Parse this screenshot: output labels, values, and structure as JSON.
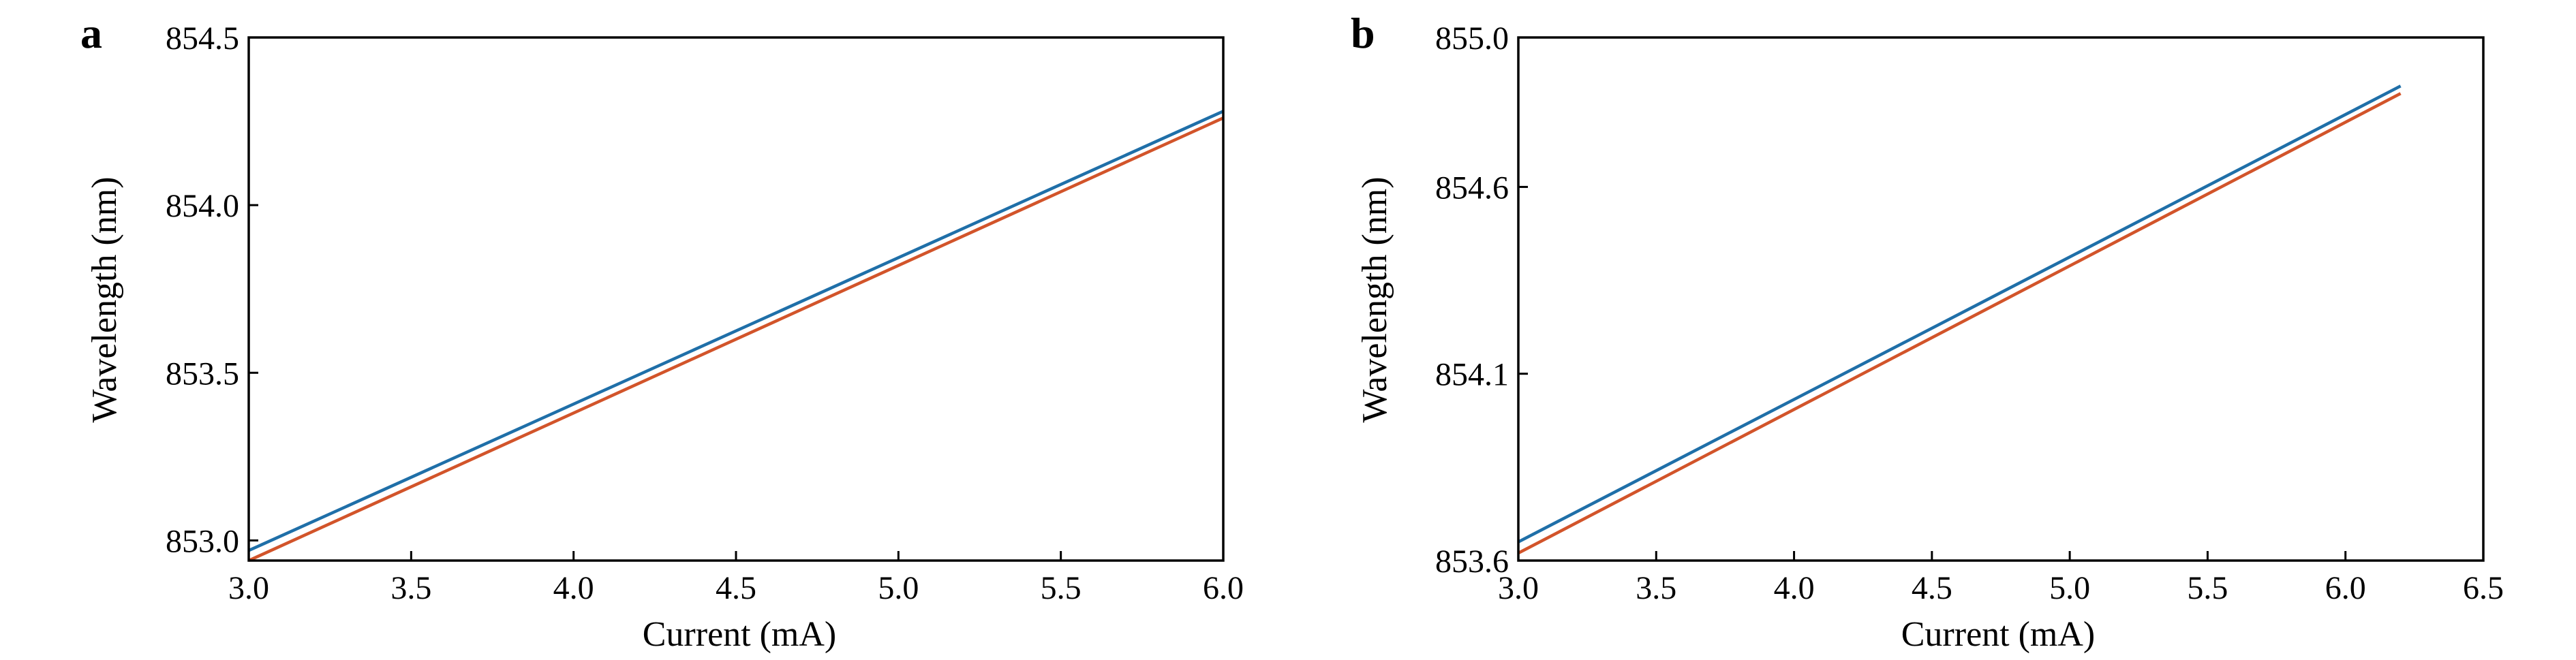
{
  "chart_data": [
    {
      "panel": "a",
      "type": "line",
      "xlabel": "Current (mA)",
      "ylabel": "Wavelength (nm)",
      "xlim": [
        3.0,
        6.0
      ],
      "ylim": [
        852.94,
        854.5
      ],
      "xticks": [
        "3.0",
        "3.5",
        "4.0",
        "4.5",
        "5.0",
        "5.5",
        "6.0"
      ],
      "yticks": [
        "853.0",
        "853.5",
        "854.0",
        "854.5"
      ],
      "grid": false,
      "series": [
        {
          "color": "#1f6fa8",
          "x": [
            3.0,
            6.0
          ],
          "y": [
            852.97,
            854.28
          ]
        },
        {
          "color": "#d2542a",
          "x": [
            3.0,
            6.0
          ],
          "y": [
            852.94,
            854.26
          ]
        }
      ]
    },
    {
      "panel": "b",
      "type": "line",
      "xlabel": "Current (mA)",
      "ylabel": "Wavelength (nm)",
      "xlim": [
        3.0,
        6.5
      ],
      "ylim": [
        853.6,
        855.0
      ],
      "xticks": [
        "3.0",
        "3.5",
        "4.0",
        "4.5",
        "5.0",
        "5.5",
        "6.0",
        "6.5"
      ],
      "yticks": [
        "853.6",
        "854.1",
        "854.6",
        "855.0"
      ],
      "grid": false,
      "series": [
        {
          "color": "#1f6fa8",
          "x": [
            3.0,
            6.2
          ],
          "y": [
            853.65,
            854.87
          ]
        },
        {
          "color": "#d2542a",
          "x": [
            3.0,
            6.2
          ],
          "y": [
            853.62,
            854.85
          ]
        }
      ]
    }
  ]
}
